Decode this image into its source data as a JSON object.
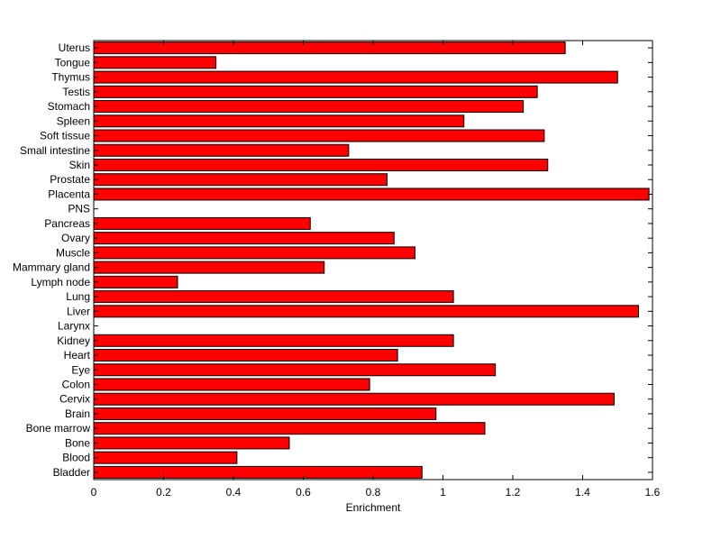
{
  "chart_data": {
    "type": "bar",
    "orientation": "horizontal",
    "title": "",
    "xlabel": "Enrichment",
    "ylabel": "",
    "xlim": [
      0,
      1.6
    ],
    "xticks": [
      0,
      0.2,
      0.4,
      0.6,
      0.8,
      1,
      1.2,
      1.4,
      1.6
    ],
    "grid": false,
    "bar_color": "#ff0000",
    "categories": [
      "Bladder",
      "Blood",
      "Bone",
      "Bone marrow",
      "Brain",
      "Cervix",
      "Colon",
      "Eye",
      "Heart",
      "Kidney",
      "Larynx",
      "Liver",
      "Lung",
      "Lymph node",
      "Mammary gland",
      "Muscle",
      "Ovary",
      "Pancreas",
      "PNS",
      "Placenta",
      "Prostate",
      "Skin",
      "Small intestine",
      "Soft tissue",
      "Spleen",
      "Stomach",
      "Testis",
      "Thymus",
      "Tongue",
      "Uterus"
    ],
    "values": [
      0.94,
      0.41,
      0.56,
      1.12,
      0.98,
      1.49,
      0.79,
      1.15,
      0.87,
      1.03,
      0,
      1.56,
      1.03,
      0.24,
      0.66,
      0.92,
      0.86,
      0.62,
      0,
      1.59,
      0.84,
      1.3,
      0.73,
      1.29,
      1.06,
      1.23,
      1.27,
      1.5,
      0.35,
      1.35
    ]
  }
}
